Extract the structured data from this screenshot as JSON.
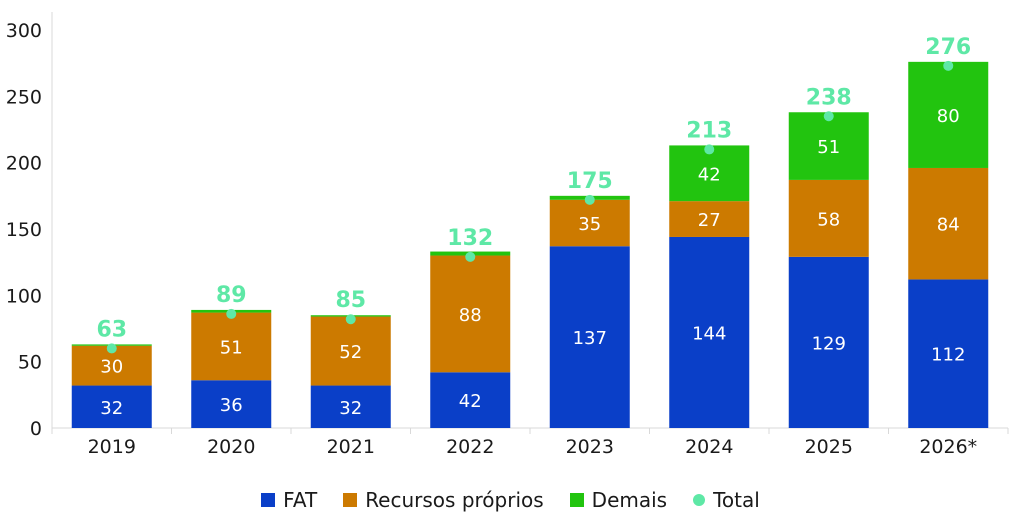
{
  "chart_data": {
    "type": "bar",
    "stacked": true,
    "categories": [
      "2019",
      "2020",
      "2021",
      "2022",
      "2023",
      "2024",
      "2025",
      "2026*"
    ],
    "series": [
      {
        "name": "FAT",
        "color": "#0a3fc8",
        "values": [
          32,
          36,
          32,
          42,
          137,
          144,
          129,
          112
        ]
      },
      {
        "name": "Recursos próprios",
        "color": "#cc7a00",
        "values": [
          30,
          51,
          52,
          88,
          35,
          27,
          58,
          84
        ]
      },
      {
        "name": "Demais",
        "color": "#22c40f",
        "values": [
          1,
          2,
          1,
          3,
          3,
          42,
          51,
          80
        ],
        "labels": [
          "",
          "",
          "",
          "",
          "",
          "42",
          "51",
          "80"
        ]
      }
    ],
    "totals": {
      "name": "Total",
      "color": "#5ee8a6",
      "values": [
        63,
        89,
        85,
        132,
        175,
        213,
        238,
        276
      ]
    },
    "ylim": [
      0,
      300
    ],
    "yticks": [
      "0",
      "50",
      "100",
      "150",
      "200",
      "250",
      "300"
    ],
    "grid": false,
    "legend_position": "bottom-center"
  }
}
